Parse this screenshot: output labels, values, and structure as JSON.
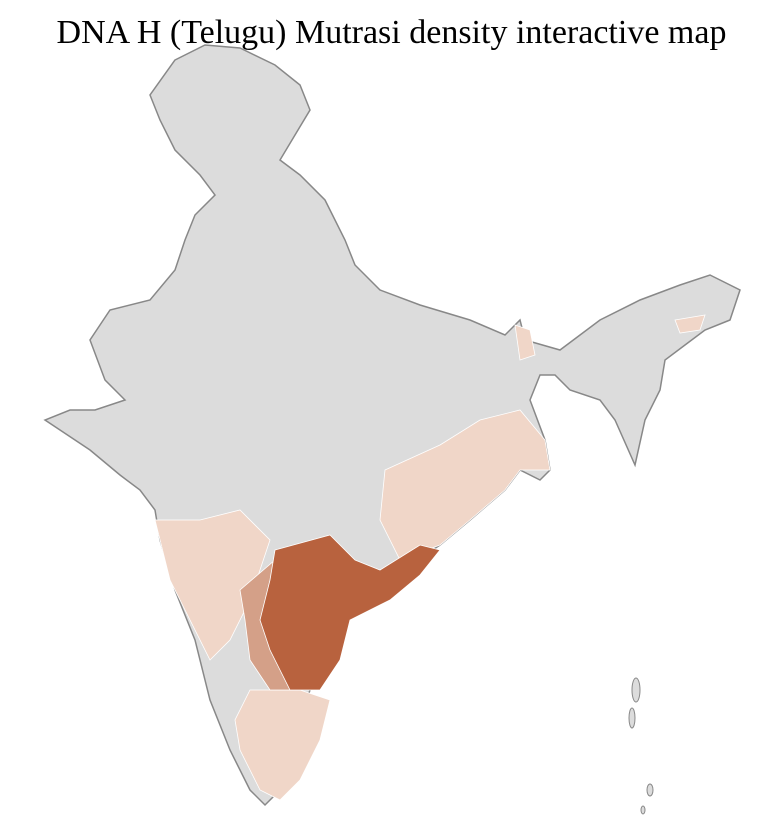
{
  "header": {
    "title": "DNA H (Telugu) Mutrasi density interactive map"
  }
}
